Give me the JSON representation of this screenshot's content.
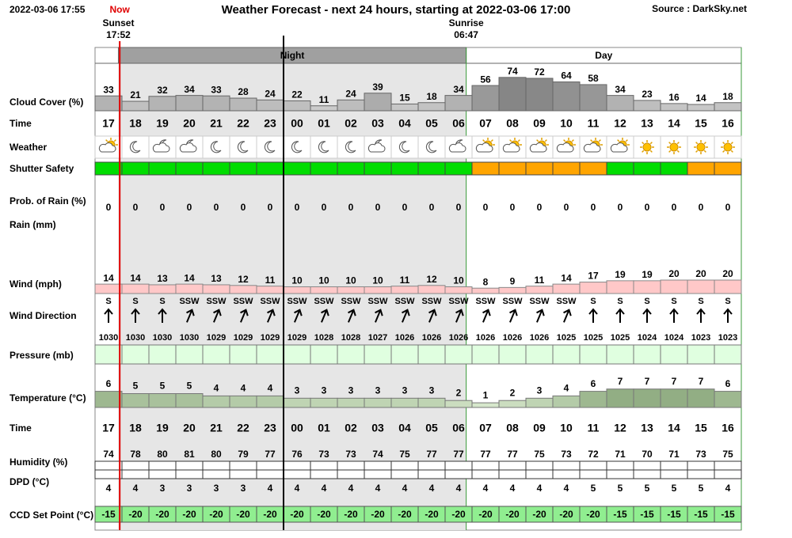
{
  "header": {
    "timestamp": "2022-03-06 17:55",
    "now": "Now",
    "title": "Weather Forecast - next 24 hours, starting at 2022-03-06 17:00",
    "source": "Source : DarkSky.net",
    "sunset": {
      "label": "Sunset",
      "time": "17:52"
    },
    "sunrise": {
      "label": "Sunrise",
      "time": "06:47"
    },
    "night": "Night",
    "day": "Day"
  },
  "hours": [
    "17",
    "18",
    "19",
    "20",
    "21",
    "22",
    "23",
    "00",
    "01",
    "02",
    "03",
    "04",
    "05",
    "06",
    "07",
    "08",
    "09",
    "10",
    "11",
    "12",
    "13",
    "14",
    "15",
    "16"
  ],
  "rows": {
    "cloud_cover": {
      "label": "Cloud Cover (%)",
      "values": [
        33,
        21,
        32,
        34,
        33,
        28,
        24,
        22,
        11,
        24,
        39,
        15,
        18,
        34,
        56,
        74,
        72,
        64,
        58,
        34,
        23,
        16,
        14,
        18
      ]
    },
    "time_top": {
      "label": "Time"
    },
    "weather": {
      "label": "Weather"
    },
    "shutter_safety": {
      "label": "Shutter Safety",
      "colors": [
        "#00dd00",
        "#00dd00",
        "#00dd00",
        "#00dd00",
        "#00dd00",
        "#00dd00",
        "#00dd00",
        "#00dd00",
        "#00dd00",
        "#00dd00",
        "#00dd00",
        "#00dd00",
        "#00dd00",
        "#00dd00",
        "#ffa500",
        "#ffa500",
        "#ffa500",
        "#ffa500",
        "#ffa500",
        "#00dd00",
        "#00dd00",
        "#00dd00",
        "#ffa500",
        "#ffa500"
      ]
    },
    "prob_rain": {
      "label": "Prob. of Rain (%)",
      "values": [
        0,
        0,
        0,
        0,
        0,
        0,
        0,
        0,
        0,
        0,
        0,
        0,
        0,
        0,
        0,
        0,
        0,
        0,
        0,
        0,
        0,
        0,
        0,
        0
      ]
    },
    "rain": {
      "label": "Rain (mm)"
    },
    "wind": {
      "label": "Wind (mph)",
      "values": [
        14,
        14,
        13,
        14,
        13,
        12,
        11,
        10,
        10,
        10,
        10,
        11,
        12,
        10,
        8,
        9,
        11,
        14,
        17,
        19,
        19,
        20,
        20,
        20
      ]
    },
    "wind_direction": {
      "label": "Wind Direction",
      "values": [
        "S",
        "S",
        "S",
        "SSW",
        "SSW",
        "SSW",
        "SSW",
        "SSW",
        "SSW",
        "SSW",
        "SSW",
        "SSW",
        "SSW",
        "SSW",
        "SSW",
        "SSW",
        "SSW",
        "SSW",
        "S",
        "S",
        "S",
        "S",
        "S",
        "S"
      ]
    },
    "pressure": {
      "label": "Pressure (mb)",
      "values": [
        1030,
        1030,
        1030,
        1030,
        1029,
        1029,
        1029,
        1029,
        1028,
        1028,
        1027,
        1026,
        1026,
        1026,
        1026,
        1026,
        1026,
        1025,
        1025,
        1025,
        1024,
        1024,
        1023,
        1023
      ]
    },
    "temperature": {
      "label": "Temperature (°C)",
      "values": [
        6,
        5,
        5,
        5,
        4,
        4,
        4,
        3,
        3,
        3,
        3,
        3,
        3,
        2,
        1,
        2,
        3,
        4,
        6,
        7,
        7,
        7,
        7,
        6
      ]
    },
    "time_bottom": {
      "label": "Time"
    },
    "humidity": {
      "label": "Humidity (%)",
      "values": [
        74,
        78,
        80,
        81,
        80,
        79,
        77,
        76,
        73,
        73,
        74,
        75,
        77,
        77,
        77,
        77,
        75,
        73,
        72,
        71,
        70,
        71,
        73,
        75
      ]
    },
    "dpd": {
      "label": "DPD (°C)",
      "values": [
        4,
        4,
        3,
        3,
        3,
        3,
        4,
        4,
        4,
        4,
        4,
        4,
        4,
        4,
        4,
        4,
        4,
        4,
        5,
        5,
        5,
        5,
        5,
        4
      ]
    },
    "ccd_set_point": {
      "label": "CCD Set Point (°C)",
      "values": [
        -15,
        -20,
        -20,
        -20,
        -20,
        -20,
        -20,
        -20,
        -20,
        -20,
        -20,
        -20,
        -20,
        -20,
        -20,
        -20,
        -20,
        -20,
        -20,
        -15,
        -15,
        -15,
        -15,
        -15
      ]
    }
  }
}
